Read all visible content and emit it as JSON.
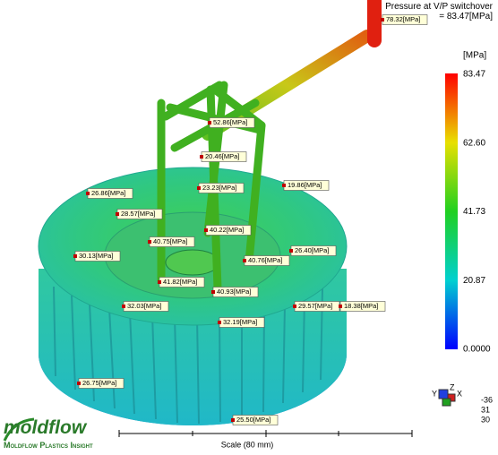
{
  "header": {
    "title": "Pressure at V/P switchover",
    "value": "= 83.47[MPa]"
  },
  "legend": {
    "unit": "[MPa]",
    "labels": [
      "83.47",
      "62.60",
      "41.73",
      "20.87",
      "0.0000"
    ]
  },
  "probes": [
    "78.32[MPa]",
    "52.86[MPa]",
    "20.46[MPa]",
    "19.86[MPa]",
    "26.86[MPa]",
    "23.23[MPa]",
    "28.57[MPa]",
    "40.22[MPa]",
    "40.75[MPa]",
    "26.40[MPa]",
    "30.13[MPa]",
    "40.76[MPa]",
    "41.82[MPa]",
    "40.93[MPa]",
    "32.03[MPa]",
    "29.57[MPa]",
    "18.38[MPa]",
    "32.19[MPa]",
    "26.75[MPa]",
    "25.50[MPa]"
  ],
  "scale": {
    "label": "Scale (80 mm)"
  },
  "triad": {
    "axes": [
      "Y",
      "Z",
      "X"
    ],
    "angles": [
      "-36",
      "31",
      "30"
    ]
  },
  "logo": {
    "brand": "moldflow",
    "tagline": "Moldflow Plastics Insight"
  }
}
